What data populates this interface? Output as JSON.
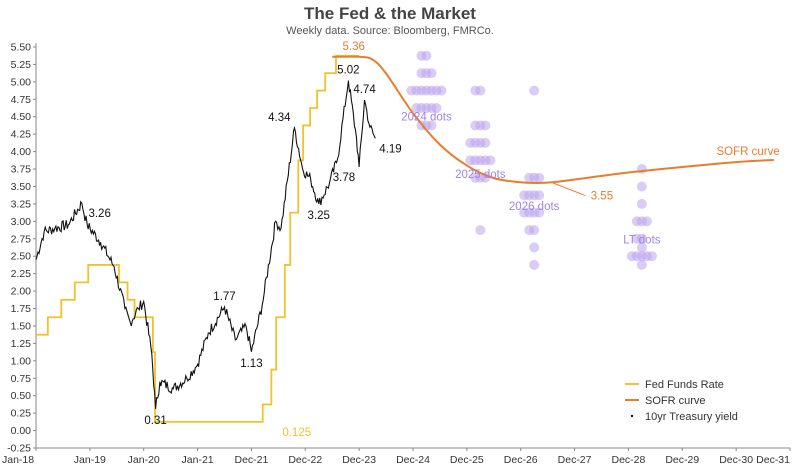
{
  "chart_data": {
    "type": "line",
    "title": "The Fed & the Market",
    "subtitle": "Weekly data.  Source: Bloomberg, FMRCo.",
    "xlabel": "",
    "ylabel": "",
    "xlim": [
      2018.0,
      2032.0
    ],
    "ylim": [
      -0.25,
      5.5
    ],
    "y_ticks": [
      "5.50",
      "5.25",
      "5.00",
      "4.75",
      "4.50",
      "4.25",
      "4.00",
      "3.75",
      "3.50",
      "3.25",
      "3.00",
      "2.75",
      "2.50",
      "2.25",
      "2.00",
      "1.75",
      "1.50",
      "1.25",
      "1.00",
      "0.75",
      "0.50",
      "0.25",
      "0.00",
      "-0.25"
    ],
    "x_ticks": [
      "Jan-18",
      "Jan-19",
      "Jan-20",
      "Jan-21",
      "Dec-21",
      "Dec-22",
      "Dec-23",
      "Dec-24",
      "Dec-25",
      "Dec-26",
      "Dec-27",
      "Dec-28",
      "Dec-29",
      "Dec-30",
      "Dec-31"
    ],
    "grid": false,
    "legend_position": "bottom-right",
    "colors": {
      "fed_funds": "#f2c12e",
      "sofr": "#e87d2c",
      "treasury": "#111111",
      "dots": "#b9a3ec",
      "dot_labels": "#9f83e6"
    },
    "series": [
      {
        "name": "Fed Funds Rate",
        "kind": "step",
        "x": [
          2018.0,
          2018.22,
          2018.47,
          2018.72,
          2018.97,
          2019.54,
          2019.7,
          2019.83,
          2020.17,
          2020.21,
          2022.21,
          2022.37,
          2022.46,
          2022.62,
          2022.72,
          2022.87,
          2022.96,
          2023.09,
          2023.22,
          2023.37,
          2023.57,
          2024.0
        ],
        "y": [
          1.375,
          1.625,
          1.875,
          2.125,
          2.375,
          2.125,
          1.875,
          1.625,
          1.125,
          0.125,
          0.375,
          0.875,
          1.625,
          2.375,
          3.125,
          3.875,
          4.375,
          4.625,
          4.875,
          5.125,
          5.375,
          5.375
        ]
      },
      {
        "name": "SOFR curve",
        "kind": "smooth",
        "x": [
          2023.5,
          2024.0,
          2024.25,
          2024.5,
          2025.0,
          2025.5,
          2026.0,
          2026.5,
          2027.0,
          2027.3,
          2027.6,
          2028.0,
          2029.0,
          2030.0,
          2031.0,
          2031.7
        ],
        "y": [
          5.36,
          5.36,
          5.32,
          5.12,
          4.55,
          4.1,
          3.8,
          3.62,
          3.56,
          3.55,
          3.56,
          3.6,
          3.7,
          3.78,
          3.85,
          3.88
        ]
      },
      {
        "name": "10yr Treasury yield",
        "kind": "noisy-line",
        "x": [
          2018.0,
          2018.15,
          2018.35,
          2018.6,
          2018.85,
          2018.95,
          2019.2,
          2019.45,
          2019.65,
          2019.75,
          2019.9,
          2020.0,
          2020.15,
          2020.22,
          2020.3,
          2020.55,
          2020.8,
          2021.0,
          2021.2,
          2021.5,
          2021.7,
          2021.9,
          2022.0,
          2022.2,
          2022.45,
          2022.55,
          2022.8,
          2022.95,
          2023.1,
          2023.25,
          2023.45,
          2023.6,
          2023.8,
          2023.95,
          2024.0,
          2024.1,
          2024.2,
          2024.3
        ],
        "y": [
          2.45,
          2.85,
          2.9,
          2.95,
          3.26,
          2.95,
          2.7,
          2.35,
          1.75,
          1.55,
          1.75,
          1.85,
          1.1,
          0.31,
          0.7,
          0.6,
          0.75,
          0.95,
          1.4,
          1.77,
          1.3,
          1.5,
          1.13,
          1.8,
          3.0,
          2.9,
          4.34,
          3.75,
          3.6,
          3.25,
          3.55,
          3.9,
          5.02,
          4.2,
          3.78,
          4.74,
          4.35,
          4.19
        ]
      }
    ],
    "dot_groups": [
      {
        "label": "2024 dots",
        "x": 2025.25,
        "values": [
          5.375,
          5.375,
          5.125,
          5.125,
          5.125,
          4.875,
          4.875,
          4.875,
          4.875,
          4.875,
          4.875,
          4.875,
          4.625,
          4.625,
          4.625,
          4.625,
          4.625,
          4.375,
          4.375,
          4.375
        ]
      },
      {
        "label": "2025 dots",
        "x": 2026.25,
        "values": [
          4.875,
          4.875,
          4.375,
          4.375,
          4.375,
          4.125,
          4.125,
          4.125,
          4.125,
          3.875,
          3.875,
          3.875,
          3.875,
          3.875,
          3.625,
          3.625,
          3.625,
          2.875
        ]
      },
      {
        "label": "2026 dots",
        "x": 2027.25,
        "values": [
          4.875,
          3.625,
          3.625,
          3.625,
          3.375,
          3.375,
          3.375,
          3.375,
          3.125,
          3.125,
          3.125,
          3.125,
          2.875,
          2.875,
          2.625,
          2.375
        ]
      },
      {
        "label": "LT dots",
        "x": 2029.25,
        "values": [
          3.75,
          3.5,
          3.25,
          3.0,
          3.0,
          3.0,
          2.75,
          2.75,
          2.625,
          2.5,
          2.5,
          2.5,
          2.5,
          2.5,
          2.375
        ]
      }
    ],
    "annotations": [
      {
        "text": "3.26",
        "x": 2018.9,
        "y": 3.26,
        "color": "#111111",
        "anchor": "below-right"
      },
      {
        "text": "0.31",
        "x": 2020.22,
        "y": 0.31,
        "color": "#111111",
        "anchor": "below"
      },
      {
        "text": "1.77",
        "x": 2021.5,
        "y": 1.77,
        "color": "#111111",
        "anchor": "above"
      },
      {
        "text": "1.13",
        "x": 2022.0,
        "y": 1.13,
        "color": "#111111",
        "anchor": "below"
      },
      {
        "text": "4.34",
        "x": 2022.8,
        "y": 4.34,
        "color": "#111111",
        "anchor": "above-left"
      },
      {
        "text": "3.25",
        "x": 2023.25,
        "y": 3.25,
        "color": "#111111",
        "anchor": "below"
      },
      {
        "text": "5.02",
        "x": 2023.8,
        "y": 5.02,
        "color": "#111111",
        "anchor": "above"
      },
      {
        "text": "4.74",
        "x": 2024.1,
        "y": 4.74,
        "color": "#111111",
        "anchor": "above"
      },
      {
        "text": "3.78",
        "x": 2024.0,
        "y": 3.78,
        "color": "#111111",
        "anchor": "below-left"
      },
      {
        "text": "4.19",
        "x": 2024.3,
        "y": 4.19,
        "color": "#111111",
        "anchor": "below-right"
      },
      {
        "text": "5.36",
        "x": 2023.9,
        "y": 5.36,
        "color": "#e87d2c",
        "anchor": "above"
      },
      {
        "text": "0.125",
        "x": 2022.5,
        "y": 0.125,
        "color": "#f2c12e",
        "anchor": "below-right"
      },
      {
        "text": "3.55",
        "x": 2028.5,
        "y": 3.55,
        "color": "#e87d2c",
        "anchor": "below"
      },
      {
        "text": "SOFR curve",
        "x": 2031.0,
        "y": 3.85,
        "color": "#e87d2c",
        "anchor": "above"
      }
    ],
    "legend": [
      {
        "label": "Fed Funds Rate",
        "swatch": "line",
        "color": "#f2c12e"
      },
      {
        "label": "SOFR curve",
        "swatch": "line",
        "color": "#e87d2c"
      },
      {
        "label": "10yr Treasury yield",
        "swatch": "dot",
        "color": "#111111"
      }
    ]
  }
}
